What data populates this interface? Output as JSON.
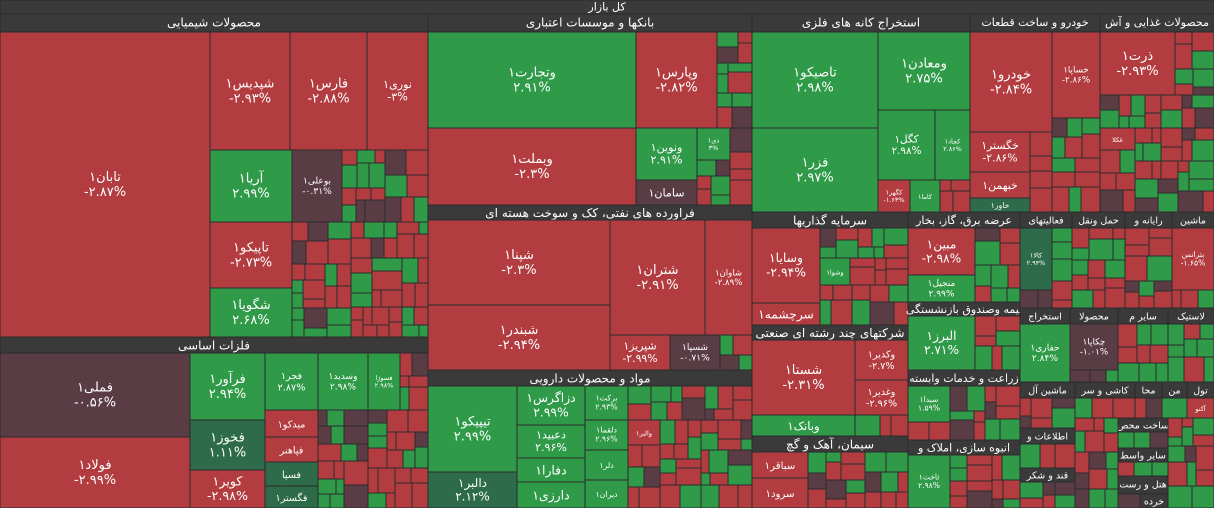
{
  "title": "کل بازار",
  "sectors": [
    {
      "name": "محصولات شیمیایی",
      "stocks": [
        {
          "name": "تابان۱",
          "change": "-۲.۸۷%"
        },
        {
          "name": "شپدیس۱",
          "change": "-۲.۹۳%"
        },
        {
          "name": "فارس۱",
          "change": "-۲.۸۸%"
        },
        {
          "name": "نوری۱",
          "change": "-۳%"
        },
        {
          "name": "آریا۱",
          "change": "۲.۹۹%"
        },
        {
          "name": "بوعلی۱",
          "change": "-۰.۳۱%"
        },
        {
          "name": "تاپیکو۱",
          "change": "-۲.۷۳%"
        },
        {
          "name": "شگویا۱",
          "change": "۲.۶۸%"
        }
      ]
    },
    {
      "name": "فلزات اساسی",
      "stocks": [
        {
          "name": "فملی۱",
          "change": "-۰.۵۶%"
        },
        {
          "name": "فولاد۱",
          "change": "-۲.۹۹%"
        },
        {
          "name": "فرآور۱",
          "change": "۲.۹۴%"
        },
        {
          "name": "فجر۱",
          "change": "۲.۸۷%"
        },
        {
          "name": "وسدید۱",
          "change": "۲.۹۸%"
        },
        {
          "name": "فسوژا",
          "change": "۲.۹۸%"
        },
        {
          "name": "فخوز۱",
          "change": "۱.۱۱%"
        },
        {
          "name": "کویر۱",
          "change": "-۲.۹۸%"
        },
        {
          "name": "میدکو۱"
        },
        {
          "name": "فپاهنر"
        },
        {
          "name": "فسپا"
        },
        {
          "name": "فگستر۱"
        }
      ]
    },
    {
      "name": "بانکها و موسسات اعتباری",
      "stocks": [
        {
          "name": "وتجارت۱",
          "change": "۲.۹۱%"
        },
        {
          "name": "وپارس۱",
          "change": "-۲.۸۲%"
        },
        {
          "name": "وبملت۱",
          "change": "-۲.۳%"
        },
        {
          "name": "ونوین۱",
          "change": "۲.۹۱%"
        },
        {
          "name": "دی۱",
          "change": "۳%"
        },
        {
          "name": "سامان۱"
        }
      ]
    },
    {
      "name": "فراورده های نفتی، کک و سوخت هسته ای",
      "stocks": [
        {
          "name": "شپنا۱",
          "change": "-۲.۳%"
        },
        {
          "name": "شبندر۱",
          "change": "-۲.۹۴%"
        },
        {
          "name": "شتران۱",
          "change": "-۲.۹۱%"
        },
        {
          "name": "شاوان۱",
          "change": "-۲.۸۹%"
        },
        {
          "name": "شپریز۱",
          "change": "-۲.۹۹%"
        },
        {
          "name": "شسپا۱",
          "change": "-۰.۷۱%"
        }
      ]
    },
    {
      "name": "مواد و محصولات دارویی",
      "stocks": [
        {
          "name": "تیپیکو۱",
          "change": "۲.۹۹%"
        },
        {
          "name": "دالبر۱",
          "change": "۲.۱۲%"
        },
        {
          "name": "دزاگرس۱",
          "change": "۲.۹۹%"
        },
        {
          "name": "دعبید۱",
          "change": "۲.۹۶%"
        },
        {
          "name": "دفارا۱"
        },
        {
          "name": "دارزی۱"
        },
        {
          "name": "برکت۱",
          "change": "۲.۹۳%"
        },
        {
          "name": "دلقما۱",
          "change": "۲.۹۶%"
        },
        {
          "name": "دلر۱"
        },
        {
          "name": "دیران۱"
        },
        {
          "name": "والبر۱"
        }
      ]
    },
    {
      "name": "استخراج کانه های فلزی",
      "stocks": [
        {
          "name": "تاصیکو۱",
          "change": "۲.۹۸%"
        },
        {
          "name": "فزر۱",
          "change": "۲.۹۷%"
        },
        {
          "name": "ومعادن۱",
          "change": "۲.۷۵%"
        },
        {
          "name": "کگل۱",
          "change": "۲.۹۸%"
        },
        {
          "name": "کچاد۱",
          "change": "۲.۸۶%"
        },
        {
          "name": "کگهر۱",
          "change": "-۱.۶۳%"
        },
        {
          "name": "کاما۱"
        }
      ]
    },
    {
      "name": "خودرو و ساخت قطعات",
      "stocks": [
        {
          "name": "خودرو۱",
          "change": "-۲.۸۴%"
        },
        {
          "name": "خساپا۱",
          "change": "-۲.۸۶%"
        },
        {
          "name": "خگستر۱",
          "change": "-۲.۸۶%"
        },
        {
          "name": "خبهمن۱"
        },
        {
          "name": "خاور۱"
        }
      ]
    },
    {
      "name": "محصولات غذایی و آش",
      "stocks": [
        {
          "name": "ذرت۱",
          "change": "-۲.۹۳%"
        },
        {
          "name": "غکلا"
        }
      ]
    },
    {
      "name": "سرمایه گذاریها",
      "stocks": [
        {
          "name": "وسایا۱",
          "change": "-۲.۹۴%"
        },
        {
          "name": "وشوا۱"
        },
        {
          "name": "سرچشمه۱"
        }
      ]
    },
    {
      "name": "عرضه برق، گاز، بخار",
      "stocks": [
        {
          "name": "مبین۱",
          "change": "-۲.۹۸%"
        },
        {
          "name": "منجیل۱",
          "change": "۲.۹۹%"
        }
      ]
    },
    {
      "name": "فعالیتهای",
      "stocks": [
        {
          "name": "کالا۱",
          "change": "۲.۹۴%"
        }
      ]
    },
    {
      "name": "حمل ونقل",
      "stocks": []
    },
    {
      "name": "رایانه و",
      "stocks": []
    },
    {
      "name": "ماشین",
      "stocks": [
        {
          "name": "بترانس",
          "change": "-۱.۶۵%"
        }
      ]
    },
    {
      "name": "بیمه وصندوق بازنشستگی",
      "stocks": [
        {
          "name": "البرز۱",
          "change": "۲.۷۱%"
        }
      ]
    },
    {
      "name": "استخراج",
      "stocks": [
        {
          "name": "حفاری۱",
          "change": "۲.۸۴%"
        }
      ]
    },
    {
      "name": "محصولا",
      "stocks": [
        {
          "name": "چکاپا۱",
          "change": "-۱.۰۱%"
        }
      ]
    },
    {
      "name": "سایر م",
      "stocks": []
    },
    {
      "name": "لاستیک",
      "stocks": []
    },
    {
      "name": "شرکتهای چند رشته ای صنعتی",
      "stocks": [
        {
          "name": "شستا۱",
          "change": "-۲.۳۱%"
        },
        {
          "name": "وکدیر۱",
          "change": "-۲.۷%"
        },
        {
          "name": "وغدیر۱",
          "change": "-۲.۹۶%"
        },
        {
          "name": "وبانک۱"
        }
      ]
    },
    {
      "name": "زراعت و خدمات وابسته",
      "stocks": [
        {
          "name": "سیدا۱",
          "change": "۱.۵۹%"
        }
      ]
    },
    {
      "name": "انبوه سازی، املاک و",
      "stocks": [
        {
          "name": "ثاخت۱",
          "change": "۲.۹۸%"
        }
      ]
    },
    {
      "name": "سیمان، آهک و گچ",
      "stocks": [
        {
          "name": "سباقر۱"
        },
        {
          "name": "سرود۱"
        }
      ]
    },
    {
      "name": "ماشین آل",
      "stocks": []
    },
    {
      "name": "کاشی و سر",
      "stocks": []
    },
    {
      "name": "محا",
      "stocks": []
    },
    {
      "name": "من",
      "stocks": []
    },
    {
      "name": "تول",
      "stocks": [
        {
          "name": "آکنو"
        }
      ]
    },
    {
      "name": "اطلاعات و",
      "stocks": []
    },
    {
      "name": "ساخت محص",
      "stocks": []
    },
    {
      "name": "قند و شکر",
      "stocks": []
    },
    {
      "name": "سایر واسط",
      "stocks": []
    },
    {
      "name": "هتل و رست",
      "stocks": []
    },
    {
      "name": "خرده",
      "stocks": []
    }
  ]
}
